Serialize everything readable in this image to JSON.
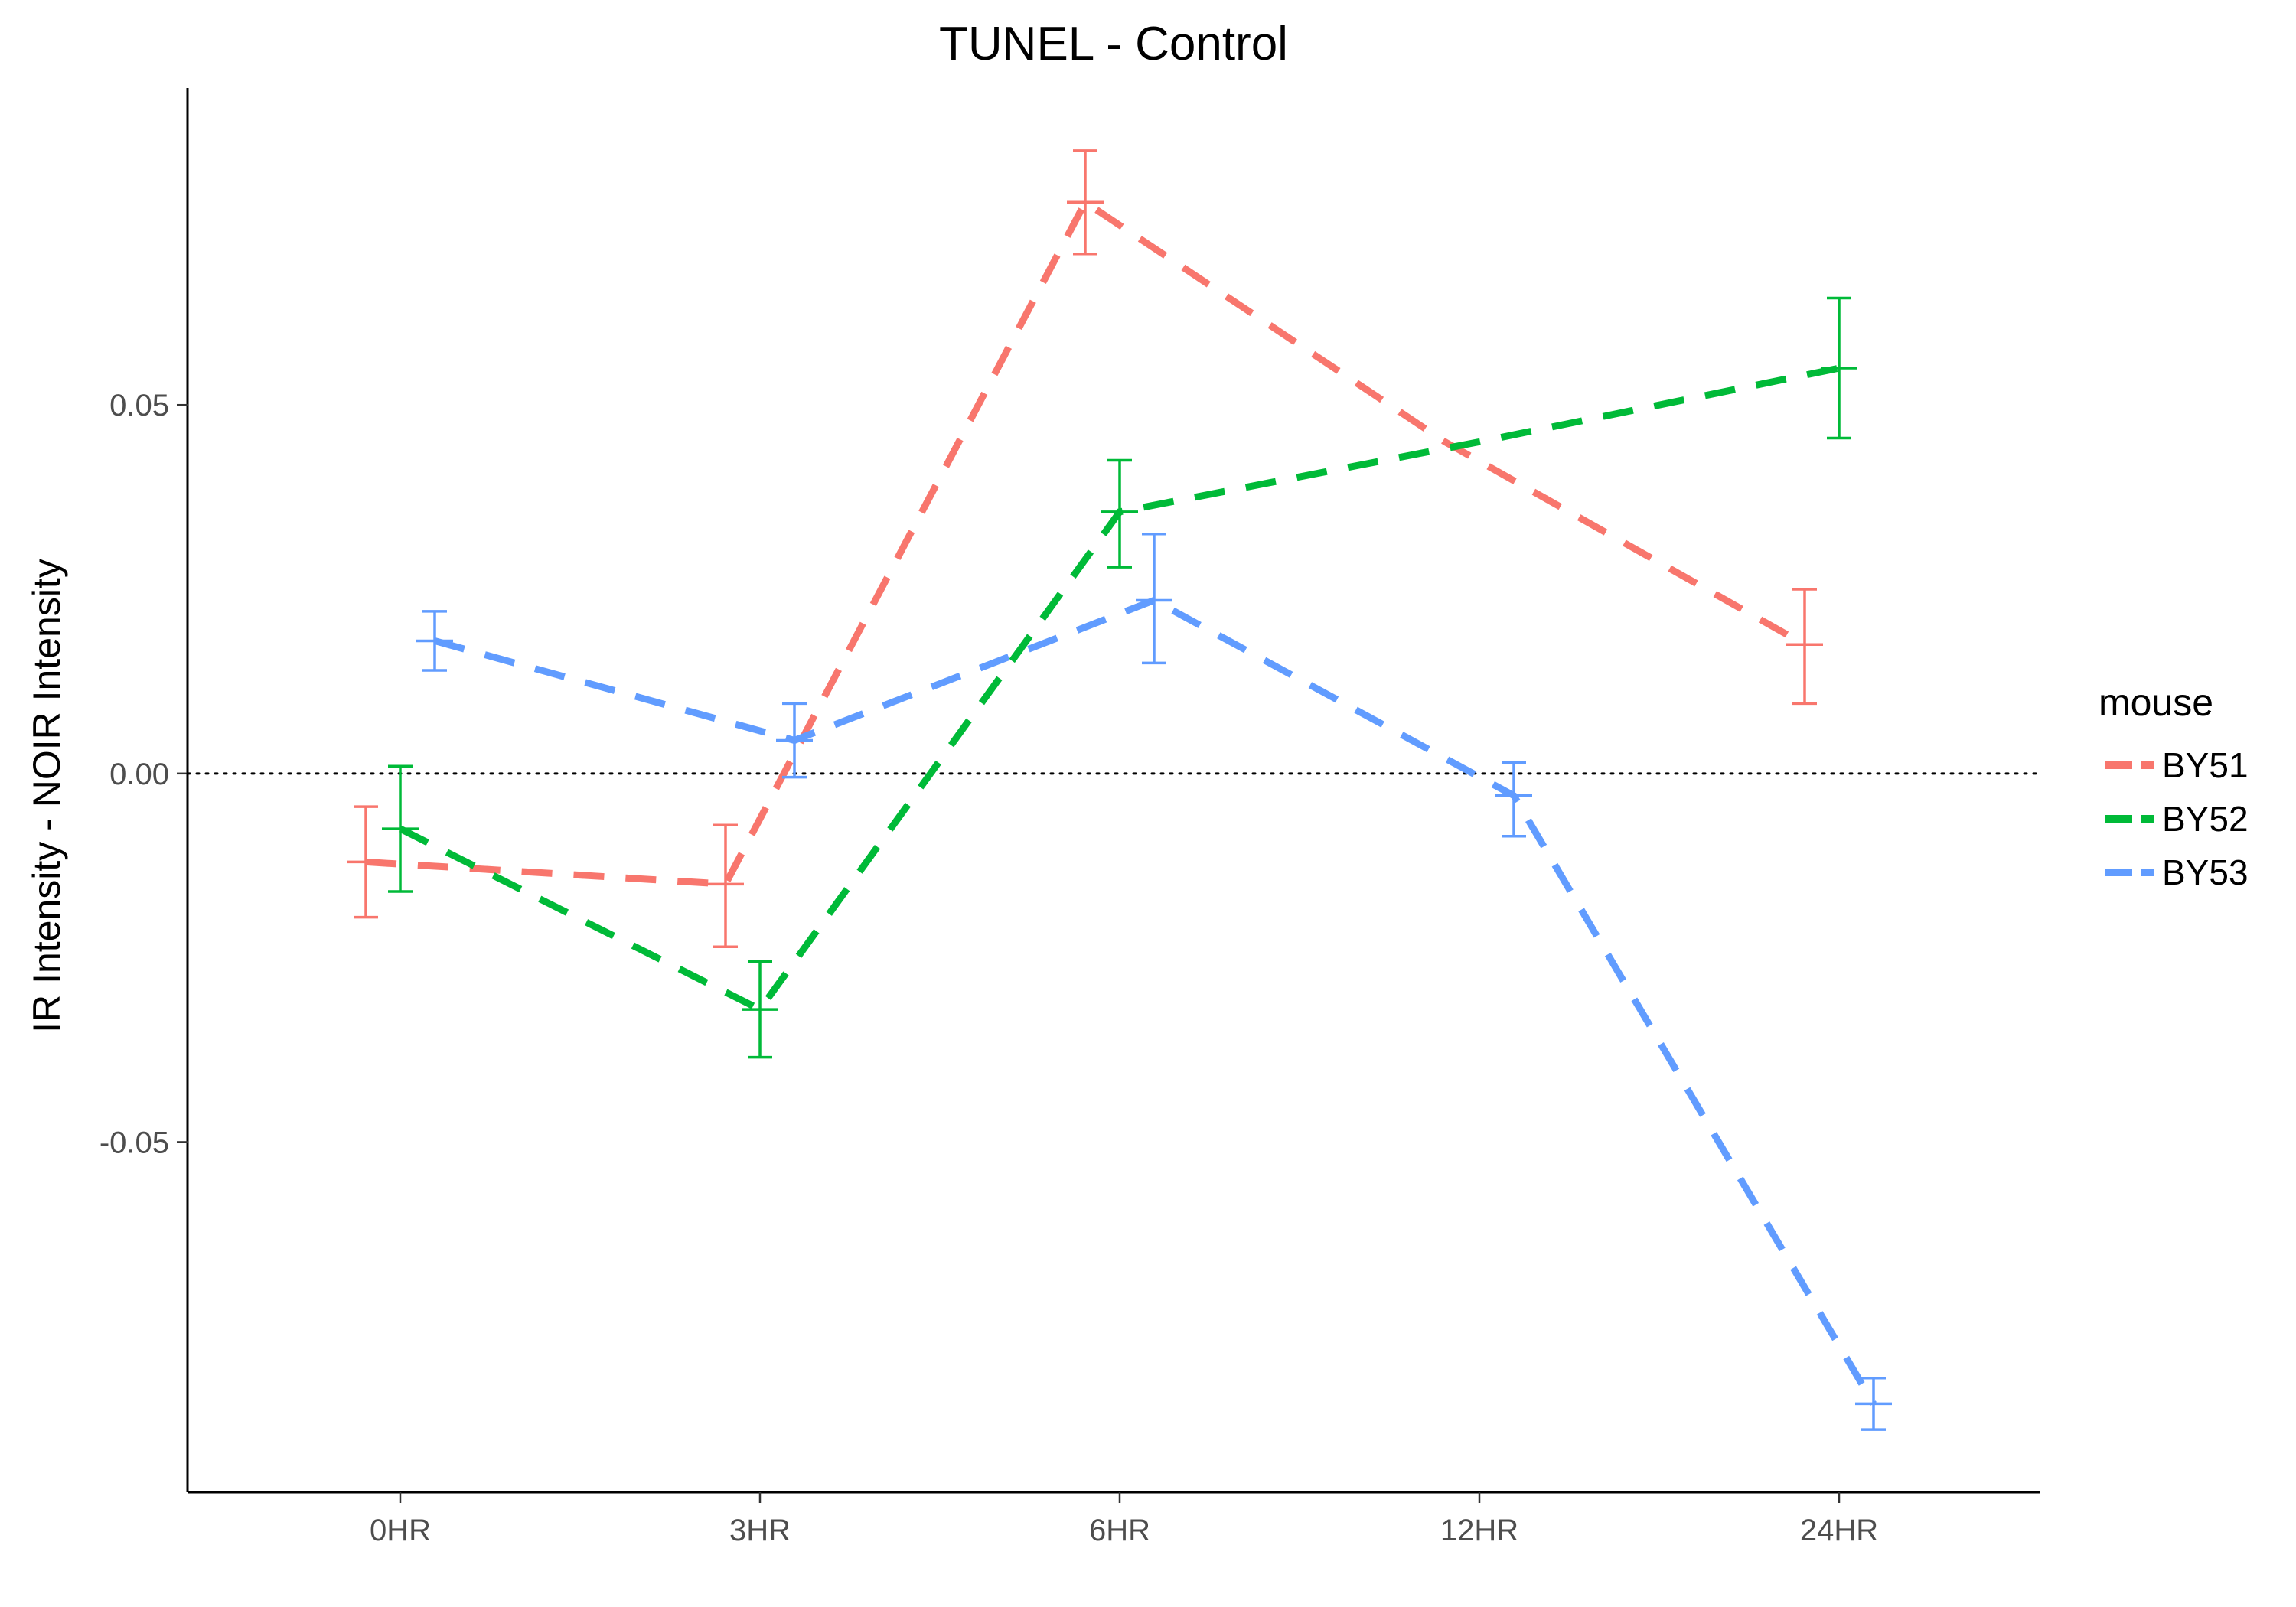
{
  "chart_data": {
    "type": "line",
    "title": "TUNEL - Control",
    "xlabel": "",
    "ylabel": "IR Intensity - NOIR Intensity",
    "categories": [
      "0HR",
      "3HR",
      "6HR",
      "12HR",
      "24HR"
    ],
    "ylim": [
      -0.0975,
      0.093
    ],
    "yticks": [
      0.05,
      0.0,
      -0.05
    ],
    "ytick_labels": [
      "0.05",
      "0.00",
      "-0.05"
    ],
    "hline": 0,
    "grid": false,
    "legend": {
      "title": "mouse",
      "placement": "right"
    },
    "series": [
      {
        "name": "BY51",
        "color": "#F8766D",
        "values": [
          -0.012,
          -0.015,
          0.0775,
          0.045,
          0.0175
        ],
        "error_low": [
          -0.0195,
          -0.0235,
          0.0705,
          null,
          0.0095
        ],
        "error_high": [
          -0.0045,
          -0.007,
          0.0845,
          null,
          0.025
        ]
      },
      {
        "name": "BY52",
        "color": "#00BA38",
        "values": [
          -0.0075,
          -0.032,
          0.0355,
          0.045,
          0.055
        ],
        "error_low": [
          -0.016,
          -0.0385,
          0.028,
          null,
          0.0455
        ],
        "error_high": [
          0.001,
          -0.0255,
          0.0425,
          null,
          0.0645
        ]
      },
      {
        "name": "BY53",
        "color": "#619CFF",
        "values": [
          0.018,
          0.0045,
          0.0235,
          -0.003,
          -0.0855
        ],
        "error_low": [
          0.014,
          -0.0005,
          0.015,
          -0.0085,
          -0.089
        ],
        "error_high": [
          0.022,
          0.0095,
          0.0325,
          0.0015,
          -0.082
        ]
      }
    ]
  }
}
